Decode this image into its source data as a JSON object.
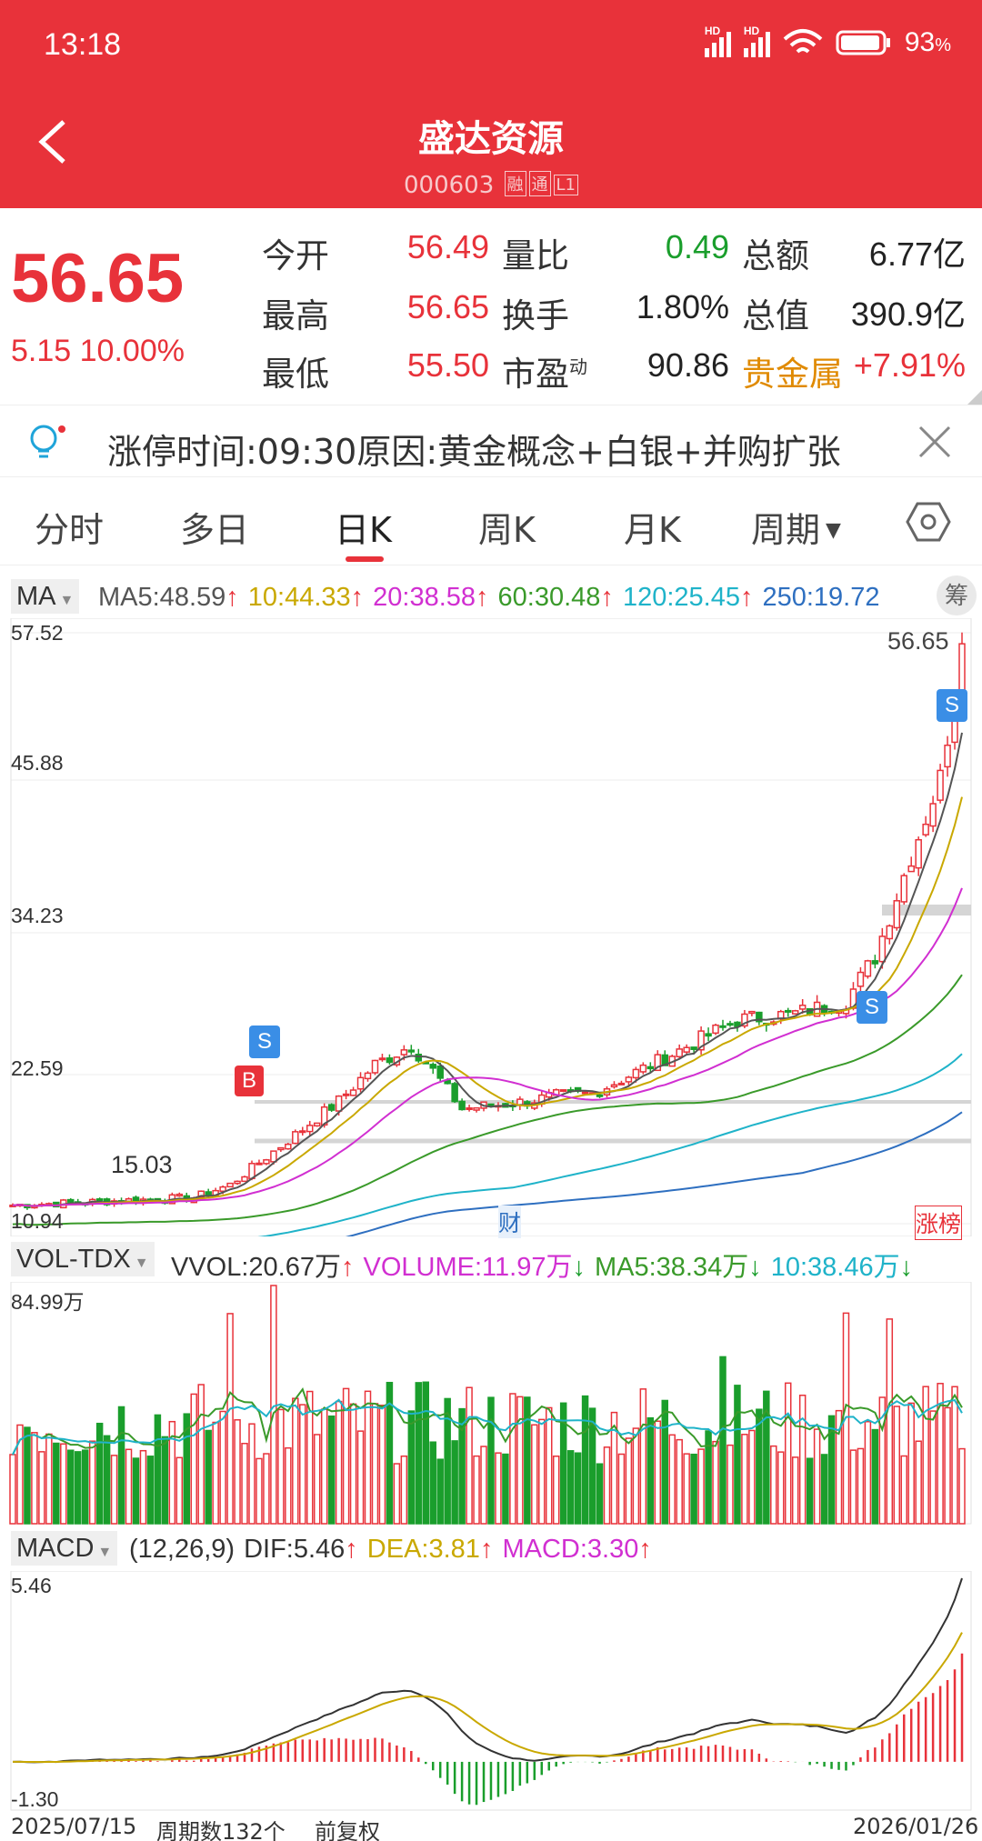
{
  "status_bar": {
    "time": "13:18",
    "battery": "93",
    "battery_unit": "%"
  },
  "header": {
    "title": "盛达资源",
    "code": "000603",
    "tags": [
      "融",
      "通",
      "L1"
    ]
  },
  "quote": {
    "price": "56.65",
    "change": "5.15",
    "change_pct": "10.00%",
    "rows": [
      {
        "l1": "今开",
        "v1": "56.49",
        "l2": "量比",
        "v2": "0.49",
        "l3": "总额",
        "v3": "6.77亿"
      },
      {
        "l1": "最高",
        "v1": "56.65",
        "l2": "换手",
        "v2": "1.80%",
        "l3": "总值",
        "v3": "390.9亿"
      },
      {
        "l1": "最低",
        "v1": "55.50",
        "l2": "市盈",
        "l2_sup": "动",
        "v2": "90.86",
        "l3": "贵金属",
        "v3": "+7.91%"
      }
    ]
  },
  "notice": {
    "text": "涨停时间:09:30原因:黄金概念+白银+并购扩张"
  },
  "tabs": [
    "分时",
    "多日",
    "日K",
    "周K",
    "月K",
    "周期"
  ],
  "active_tab": "日K",
  "ma_row": {
    "selector": "MA",
    "items": [
      {
        "label": "MA5:",
        "value": "48.59",
        "arrow": "↑",
        "color": "#555555"
      },
      {
        "label": "10:",
        "value": "44.33",
        "arrow": "↑",
        "color": "#c9a800"
      },
      {
        "label": "20:",
        "value": "38.58",
        "arrow": "↑",
        "color": "#d12fd1"
      },
      {
        "label": "60:",
        "value": "30.48",
        "arrow": "↑",
        "color": "#3a9a2a"
      },
      {
        "label": "120:",
        "value": "25.45",
        "arrow": "↑",
        "color": "#1fb3c9"
      },
      {
        "label": "250:",
        "value": "19.72",
        "arrow": "",
        "color": "#2e6fc0"
      }
    ],
    "chip_button": "筹"
  },
  "kline_axis": {
    "ticks": [
      "57.52",
      "45.88",
      "34.23",
      "22.59",
      "10.94"
    ],
    "last_price_label": "56.65",
    "low_marker": "15.03",
    "fin_marker": "财",
    "rank_marker": "涨榜",
    "buy_marker": "B",
    "sell_marker": "S"
  },
  "vol_row": {
    "selector": "VOL-TDX",
    "items": [
      {
        "label": "VVOL:",
        "value": "20.67万",
        "arrow": "↑",
        "color": "#333333"
      },
      {
        "label": "VOLUME:",
        "value": "11.97万",
        "arrow": "↓",
        "color": "#d12fd1"
      },
      {
        "label": "MA5:",
        "value": "38.34万",
        "arrow": "↓",
        "color": "#3a9a2a"
      },
      {
        "label": "10:",
        "value": "38.46万",
        "arrow": "↓",
        "color": "#1fb3c9"
      }
    ],
    "max_label": "84.99万"
  },
  "macd_row": {
    "selector": "MACD",
    "params": "(12,26,9)",
    "items": [
      {
        "label": "DIF:",
        "value": "5.46",
        "arrow": "↑",
        "color": "#333333"
      },
      {
        "label": "DEA:",
        "value": "3.81",
        "arrow": "↑",
        "color": "#c9a800"
      },
      {
        "label": "MACD:",
        "value": "3.30",
        "arrow": "↑",
        "color": "#d12fd1"
      }
    ],
    "top_label": "5.46",
    "bottom_label": "-1.30"
  },
  "footer": {
    "start_date": "2025/07/15",
    "period_count": "周期数132个",
    "adjust": "前复权",
    "end_date": "2026/01/26"
  },
  "colors": {
    "up": "#e8323a",
    "down": "#1a9e2c",
    "header": "#e8323a"
  }
}
